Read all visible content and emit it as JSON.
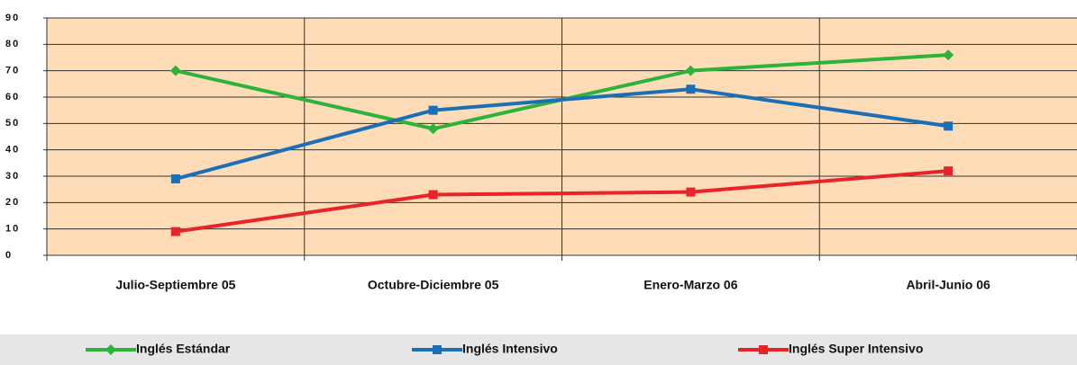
{
  "chart_data": {
    "type": "line",
    "categories": [
      "Julio-Septiembre 05",
      "Octubre-Diciembre 05",
      "Enero-Marzo 06",
      "Abril-Junio 06"
    ],
    "series": [
      {
        "name": "Inglés Estándar",
        "color": "#2eb33a",
        "marker": "diamond",
        "values": [
          70,
          48,
          70,
          76
        ]
      },
      {
        "name": "Inglés Intensivo",
        "color": "#1a6fb5",
        "marker": "square",
        "values": [
          29,
          55,
          63,
          49
        ]
      },
      {
        "name": "Inglés Super Intensivo",
        "color": "#e8232a",
        "marker": "square",
        "values": [
          9,
          23,
          24,
          32
        ]
      }
    ],
    "ylim": [
      0,
      90
    ],
    "yticks": [
      0,
      10,
      20,
      30,
      40,
      50,
      60,
      70,
      80,
      90
    ],
    "grid": true
  }
}
